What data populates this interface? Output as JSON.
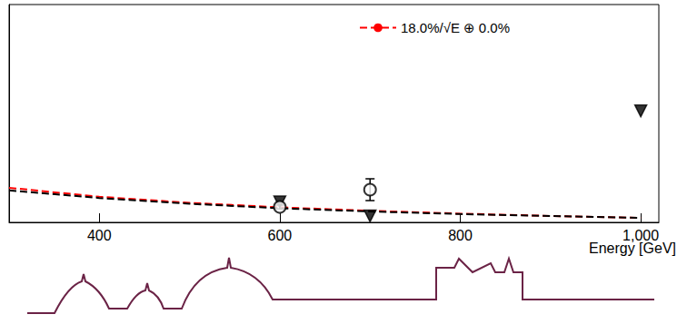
{
  "chart_data": {
    "type": "line",
    "x_label": "Energy [GeV]",
    "xlim": [
      300,
      1020
    ],
    "xticks": [
      400,
      600,
      800,
      1000
    ],
    "ylim": [
      0.5,
      3.9
    ],
    "tick_labels": "x",
    "legend": "top",
    "series": [
      {
        "name": "18.0%/√E ⊕ 0.0%",
        "type": "line",
        "color": "#ff0000",
        "line_style": "dashed",
        "x": [
          300,
          400,
          500,
          600,
          700,
          800,
          900,
          1000
        ],
        "values": [
          1.04,
          0.9,
          0.805,
          0.735,
          0.68,
          0.636,
          0.6,
          0.569
        ]
      },
      {
        "type": "line",
        "color": "#000000",
        "line_style": "dashed",
        "x": [
          300,
          400,
          500,
          600,
          700,
          800,
          900,
          1000
        ],
        "values": [
          1.0,
          0.88,
          0.79,
          0.72,
          0.67,
          0.63,
          0.6,
          0.57
        ]
      },
      {
        "type": "scatter",
        "marker": "triangle-down",
        "color": "#000000",
        "x": [
          600,
          700,
          1000
        ],
        "values": [
          0.82,
          0.6,
          2.24
        ]
      },
      {
        "type": "scatter",
        "marker": "open-circle",
        "color": "#000000",
        "x": [
          600,
          700
        ],
        "values": [
          0.74,
          1.01
        ],
        "errors": [
          0.03,
          0.17
        ]
      }
    ]
  }
}
